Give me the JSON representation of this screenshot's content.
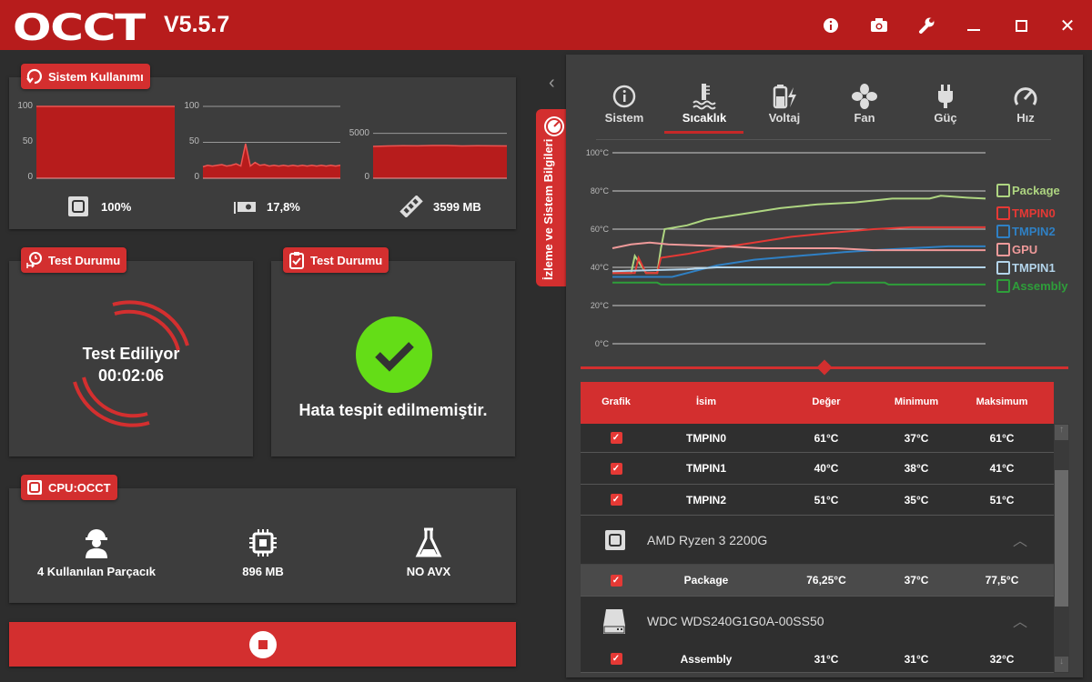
{
  "titlebar": {
    "logo": "OCCT",
    "version": "V5.5.7",
    "icons": [
      "info-icon",
      "camera-icon",
      "wrench-icon",
      "minimize-icon",
      "maximize-icon",
      "close-icon"
    ]
  },
  "usage": {
    "title": "Sistem Kullanımı",
    "cpu": {
      "ticks": [
        "100",
        "50",
        "0"
      ],
      "ylim": [
        0,
        100
      ],
      "value": "100%",
      "series": [
        100,
        100,
        100,
        100,
        100,
        100,
        100,
        100,
        100,
        100
      ]
    },
    "gpu": {
      "ticks": [
        "100",
        "50",
        "0"
      ],
      "ylim": [
        0,
        100
      ],
      "value": "17,8%",
      "series": [
        16,
        18,
        17,
        18,
        19,
        17,
        18,
        20,
        17,
        48,
        17,
        22,
        18,
        19,
        17,
        18,
        17,
        18,
        17,
        18,
        17,
        18,
        17,
        18,
        17,
        18,
        17,
        18,
        17,
        18
      ]
    },
    "ram": {
      "ticks": [
        "5000",
        "0"
      ],
      "ylim": [
        0,
        8000
      ],
      "value": "3599 MB",
      "series": [
        3550,
        3600,
        3620,
        3610,
        3650,
        3640,
        3600,
        3620,
        3610,
        3600
      ]
    }
  },
  "test1": {
    "title": "Test Durumu",
    "status": "Test Ediliyor",
    "time": "00:02:06"
  },
  "test2": {
    "title": "Test Durumu",
    "message": "Hata tespit edilmemiştir.",
    "accent": "#64dd17"
  },
  "cpu_occt": {
    "title": "CPU:OCCT",
    "items": [
      {
        "icon": "worker-icon",
        "label": "4 Kullanılan Parçacık"
      },
      {
        "icon": "chip-icon",
        "label": "896 MB"
      },
      {
        "icon": "flask-icon",
        "label": "NO AVX"
      }
    ]
  },
  "side_tab": "İzleme ve Sistem Bilgileri",
  "tabs": [
    {
      "label": "Sistem",
      "icon": "info-icon"
    },
    {
      "label": "Sıcaklık",
      "icon": "thermometer-icon",
      "active": true
    },
    {
      "label": "Voltaj",
      "icon": "battery-icon"
    },
    {
      "label": "Fan",
      "icon": "fan-icon"
    },
    {
      "label": "Güç",
      "icon": "plug-icon"
    },
    {
      "label": "Hız",
      "icon": "speedometer-icon"
    }
  ],
  "chart_data": {
    "type": "line",
    "ylim": [
      0,
      100
    ],
    "yticks": [
      "100°C",
      "80°C",
      "60°C",
      "40°C",
      "20°C",
      "0°C"
    ],
    "grid": true,
    "legend": "right",
    "series": [
      {
        "name": "Package",
        "color": "#aed581",
        "x": [
          0,
          5,
          6,
          9,
          12,
          13,
          14,
          20,
          25,
          35,
          45,
          55,
          65,
          75,
          85,
          88,
          95,
          100
        ],
        "y": [
          37,
          37,
          46,
          37,
          37,
          50,
          60,
          62,
          65,
          68,
          71,
          73,
          74,
          76,
          76,
          77.5,
          76.5,
          76
        ]
      },
      {
        "name": "TMPIN0",
        "color": "#e53935",
        "x": [
          0,
          6,
          7,
          9,
          12,
          13,
          20,
          28,
          38,
          48,
          58,
          70,
          80,
          100
        ],
        "y": [
          37,
          37,
          45,
          37,
          37,
          45,
          47,
          50,
          53,
          56,
          58,
          60,
          61,
          61
        ]
      },
      {
        "name": "TMPIN2",
        "color": "#2f80c4",
        "x": [
          0,
          16,
          22,
          28,
          38,
          50,
          62,
          70,
          80,
          90,
          100
        ],
        "y": [
          35,
          35,
          38,
          41,
          44,
          46,
          48,
          49,
          50,
          51,
          51
        ]
      },
      {
        "name": "GPU",
        "color": "#ef9a9a",
        "x": [
          0,
          5,
          10,
          15,
          30,
          40,
          60,
          70,
          100
        ],
        "y": [
          50,
          52,
          53,
          52,
          51,
          50,
          50,
          49,
          49
        ]
      },
      {
        "name": "TMPIN1",
        "color": "#b3d4ea",
        "x": [
          0,
          20,
          28,
          100
        ],
        "y": [
          38,
          39,
          40,
          40
        ]
      },
      {
        "name": "Assembly",
        "color": "#2e9e3a",
        "x": [
          0,
          12,
          13,
          58,
          59,
          73,
          74,
          100
        ],
        "y": [
          32,
          32,
          31,
          31,
          32,
          32,
          31,
          31
        ]
      }
    ]
  },
  "table": {
    "headers": [
      "Grafik",
      "İsim",
      "Değer",
      "Minimum",
      "Maksimum"
    ],
    "rows": [
      {
        "name": "TMPIN0",
        "value": "61°C",
        "min": "37°C",
        "max": "61°C"
      },
      {
        "name": "TMPIN1",
        "value": "40°C",
        "min": "38°C",
        "max": "41°C"
      },
      {
        "name": "TMPIN2",
        "value": "51°C",
        "min": "35°C",
        "max": "51°C"
      }
    ],
    "group1": {
      "name": "AMD Ryzen 3 2200G",
      "row": {
        "name": "Package",
        "value": "76,25°C",
        "min": "37°C",
        "max": "77,5°C"
      }
    },
    "group2": {
      "name": "WDC WDS240G1G0A-00SS50",
      "row": {
        "name": "Assembly",
        "value": "31°C",
        "min": "31°C",
        "max": "32°C"
      }
    }
  }
}
